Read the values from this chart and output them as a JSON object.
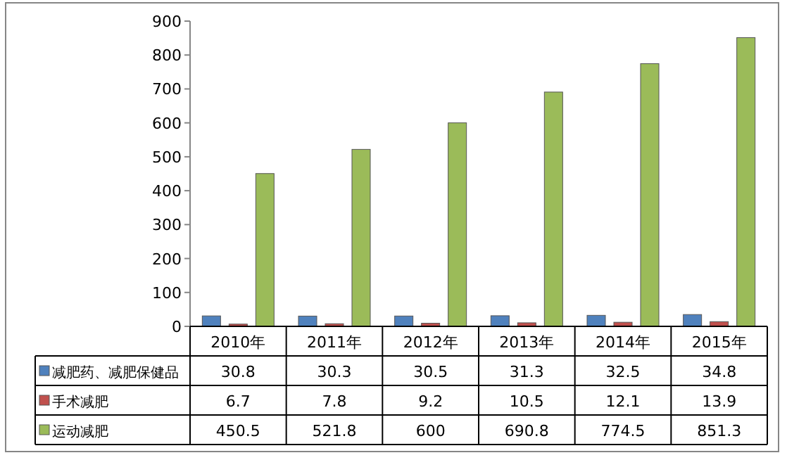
{
  "chart_data": {
    "type": "bar",
    "categories": [
      "2010年",
      "2011年",
      "2012年",
      "2013年",
      "2014年",
      "2015年"
    ],
    "series": [
      {
        "name": "减肥药、减肥保健品",
        "color": "#4f81bd",
        "values": [
          30.8,
          30.3,
          30.5,
          31.3,
          32.5,
          34.8
        ]
      },
      {
        "name": "手术减肥",
        "color": "#c0504d",
        "values": [
          6.7,
          7.8,
          9.2,
          10.5,
          12.1,
          13.9
        ]
      },
      {
        "name": "运动减肥",
        "color": "#9bbb59",
        "values": [
          450.5,
          521.8,
          600,
          690.8,
          774.5,
          851.3
        ]
      }
    ],
    "ylim": [
      0,
      900
    ],
    "yticks": [
      0,
      100,
      200,
      300,
      400,
      500,
      600,
      700,
      800,
      900
    ],
    "data_labels": true,
    "legend": "bottom"
  }
}
